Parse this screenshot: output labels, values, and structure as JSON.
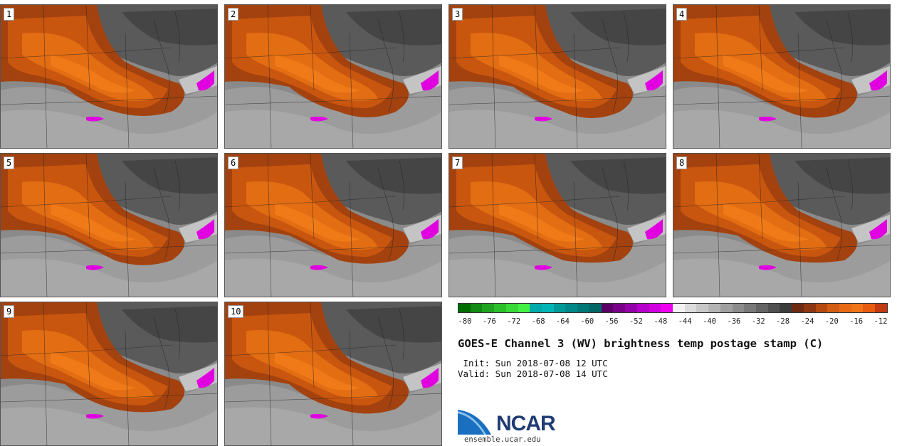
{
  "panels": [
    {
      "label": "1"
    },
    {
      "label": "2"
    },
    {
      "label": "3"
    },
    {
      "label": "4"
    },
    {
      "label": "5"
    },
    {
      "label": "6"
    },
    {
      "label": "7"
    },
    {
      "label": "8"
    },
    {
      "label": "9"
    },
    {
      "label": "10"
    }
  ],
  "colorbar": {
    "colors": [
      "#006d00",
      "#138a13",
      "#1fa31f",
      "#2bbf2b",
      "#38d938",
      "#44f044",
      "#00aaaa",
      "#00b5b5",
      "#009999",
      "#008888",
      "#007777",
      "#006666",
      "#5a0066",
      "#780088",
      "#9600a8",
      "#b400c8",
      "#d200e0",
      "#f000f0",
      "#f2f2f2",
      "#dcdcdc",
      "#c8c8c8",
      "#b4b4b4",
      "#a0a0a0",
      "#8c8c8c",
      "#787878",
      "#646464",
      "#505050",
      "#3c3c3c",
      "#6e2a12",
      "#8e3812",
      "#b44a10",
      "#d15c12",
      "#e86a14",
      "#f07418",
      "#e85c10",
      "#c23a10"
    ],
    "ticks": [
      "-80",
      "-76",
      "-72",
      "-68",
      "-64",
      "-60",
      "-56",
      "-52",
      "-48",
      "-44",
      "-40",
      "-36",
      "-32",
      "-28",
      "-24",
      "-20",
      "-16",
      "-12"
    ]
  },
  "title": "GOES-E Channel 3 (WV) brightness temp postage stamp (C)",
  "init": " Init: Sun 2018-07-08 12 UTC",
  "valid": "Valid: Sun 2018-07-08 14 UTC",
  "logo": {
    "text": "NCAR",
    "url": "ensemble.ucar.edu"
  }
}
